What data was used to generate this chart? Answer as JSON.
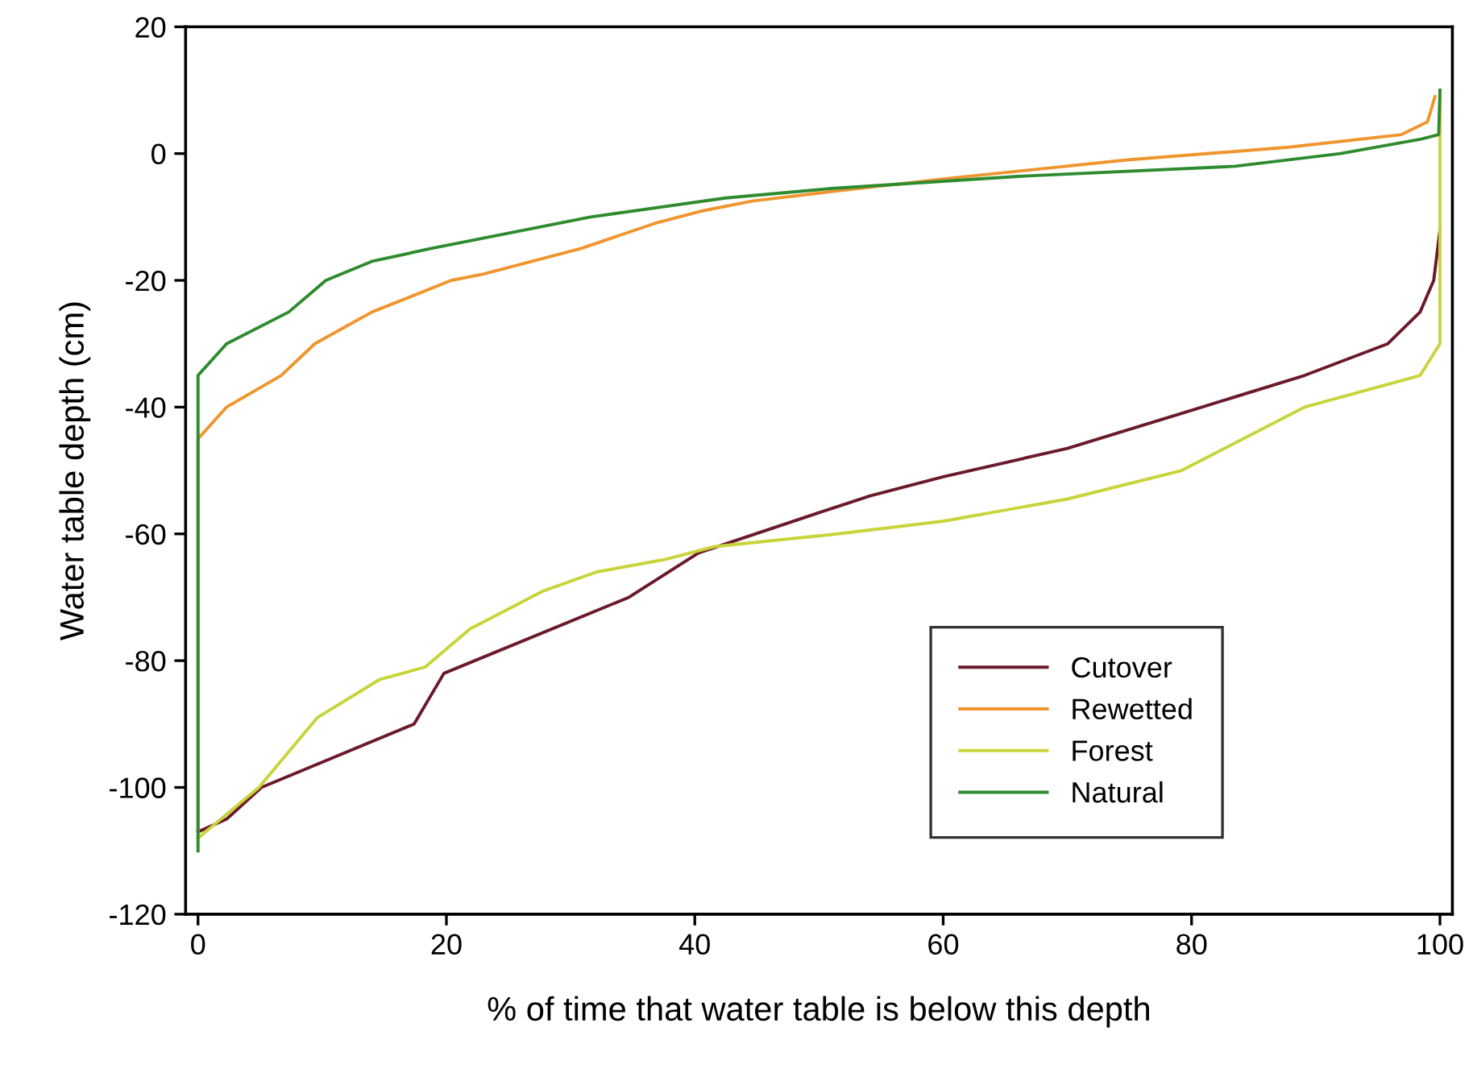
{
  "chart_data": {
    "type": "line",
    "xlabel": "% of time that water table is below this depth",
    "ylabel": "Water table depth (cm)",
    "xlim": [
      -1,
      101
    ],
    "ylim": [
      -120,
      20
    ],
    "xticks": [
      0,
      20,
      40,
      60,
      80,
      100
    ],
    "yticks": [
      -120,
      -100,
      -80,
      -60,
      -40,
      -20,
      0,
      20
    ],
    "grid": false,
    "legend": "bottom right",
    "marker": "none",
    "line_style": "solid",
    "series": [
      {
        "name": "Cutover",
        "color": "#6b1a2a",
        "x": [
          0,
          2.3,
          5.1,
          17.4,
          19.8,
          34.7,
          40.3,
          51,
          54.1,
          60,
          70,
          80,
          89.1,
          95.8,
          98.4,
          99.5,
          100
        ],
        "values": [
          -107,
          -105,
          -100,
          -90,
          -82,
          -70,
          -63,
          -56,
          -54,
          -51,
          -46.5,
          -40.5,
          -35,
          -30,
          -25,
          -20,
          -12
        ]
      },
      {
        "name": "Rewetted",
        "color": "#f0952e",
        "x": [
          0,
          0,
          2.3,
          6.7,
          9.4,
          14,
          20.4,
          23,
          30.8,
          36.8,
          40.7,
          44.6,
          51,
          60,
          74.8,
          87.8,
          96.9,
          99,
          99.6
        ],
        "values": [
          -107,
          -45,
          -40,
          -35,
          -30,
          -25,
          -20,
          -19,
          -15,
          -11,
          -9,
          -7.5,
          -6,
          -4,
          -1,
          1,
          3,
          5,
          9
        ]
      },
      {
        "name": "Forest",
        "color": "#c8d43a",
        "x": [
          0,
          4.9,
          9.6,
          14.6,
          18.3,
          21.9,
          27.8,
          32.1,
          37.7,
          41.6,
          51.5,
          60,
          70,
          79.2,
          89.1,
          98.4,
          100,
          100
        ],
        "values": [
          -108,
          -100,
          -89,
          -83,
          -81,
          -75,
          -69,
          -66,
          -64,
          -62,
          -60,
          -58,
          -54.5,
          -50,
          -40,
          -35,
          -30,
          10
        ]
      },
      {
        "name": "Natural",
        "color": "#2e8b2e",
        "x": [
          0,
          0,
          2.3,
          7.3,
          10.3,
          14,
          18.7,
          31.6,
          42.5,
          51,
          66,
          83.5,
          92,
          98.5,
          99.9,
          100
        ],
        "values": [
          -110,
          -35,
          -30,
          -25,
          -20,
          -17,
          -15,
          -10,
          -7,
          -5.5,
          -3.6,
          -2,
          0,
          2.3,
          3,
          10
        ]
      }
    ]
  }
}
